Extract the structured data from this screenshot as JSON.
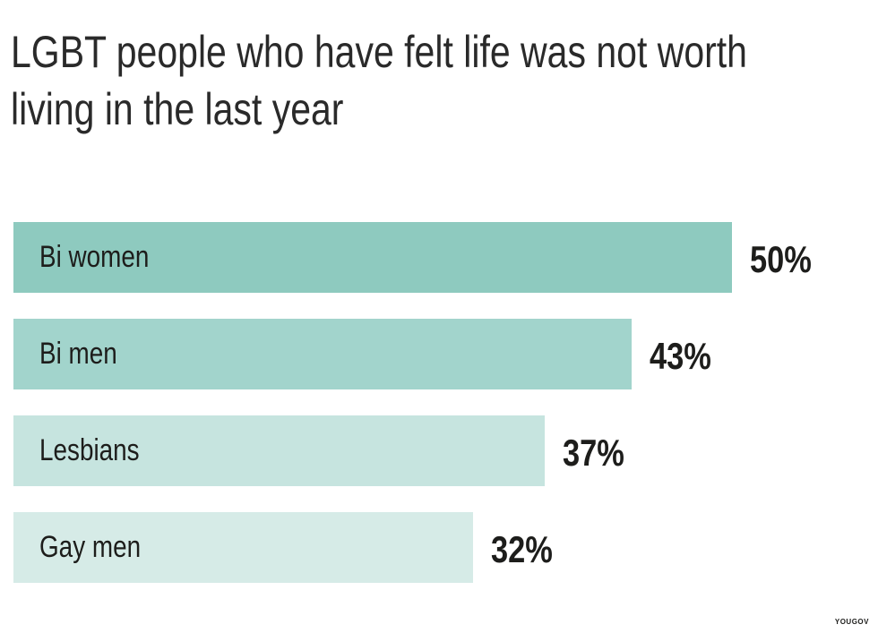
{
  "chart_data": {
    "type": "bar",
    "orientation": "horizontal",
    "title": "LGBT people who have felt life was not worth living in the last year",
    "categories": [
      "Bi women",
      "Bi men",
      "Lesbians",
      "Gay men"
    ],
    "values": [
      50,
      43,
      37,
      32
    ],
    "value_labels": [
      "50%",
      "43%",
      "37%",
      "32%"
    ],
    "colors": [
      "#8ecabf",
      "#a2d4cc",
      "#c6e4df",
      "#d6ebe7"
    ],
    "grid": false,
    "xlabel": "",
    "ylabel": ""
  },
  "source": "YOUGOV"
}
